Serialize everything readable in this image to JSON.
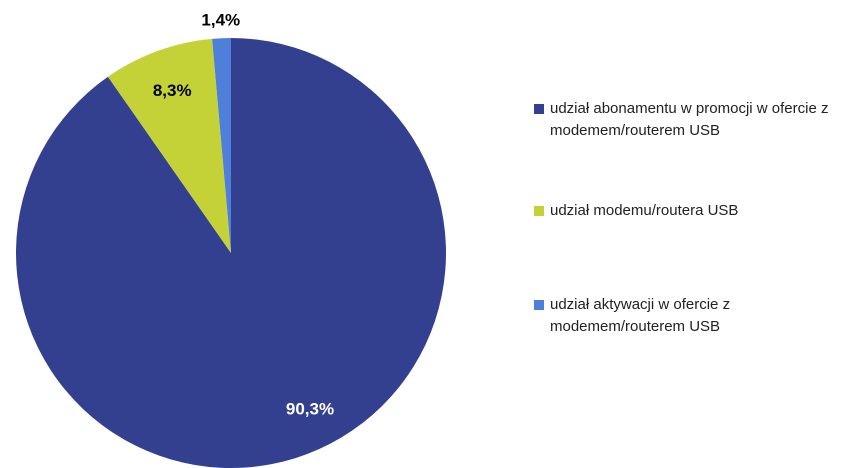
{
  "chart_data": {
    "type": "pie",
    "categories": [
      "udział abonamentu w promocji w ofercie z modemem/routerem USB",
      "udział modemu/routera USB",
      "udział aktywacji w ofercie z modemem/routerem USB"
    ],
    "values": [
      90.3,
      8.3,
      1.4
    ],
    "value_labels": [
      "90,3%",
      "8,3%",
      "1,4%"
    ],
    "colors": [
      "#333f8f",
      "#c4d238",
      "#4e7fdb"
    ],
    "legend": "right"
  }
}
